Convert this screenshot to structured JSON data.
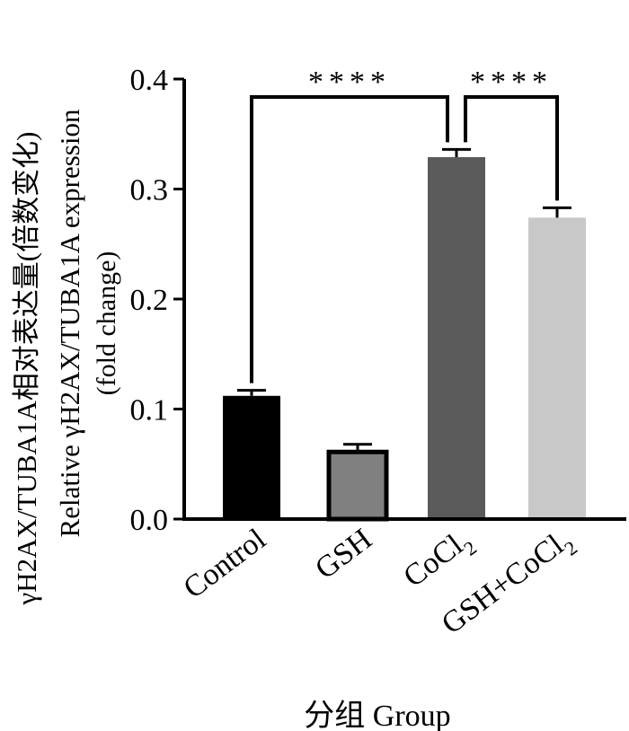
{
  "chart_data": {
    "type": "bar",
    "categories": [
      {
        "main": "Control",
        "sub": ""
      },
      {
        "main": "GSH",
        "sub": ""
      },
      {
        "main": "CoCl",
        "sub": "2"
      },
      {
        "main": "GSH+CoCl",
        "sub": "2"
      }
    ],
    "values": [
      0.112,
      0.061,
      0.329,
      0.274
    ],
    "errors": [
      0.005,
      0.007,
      0.007,
      0.009
    ],
    "colors": [
      "#000000",
      "#808080",
      "#5a5a5a",
      "#c8c8c8"
    ],
    "bordered": [
      false,
      true,
      false,
      false
    ],
    "ylim": [
      0,
      0.4
    ],
    "yticks": [
      "0.0",
      "0.1",
      "0.2",
      "0.3",
      "0.4"
    ],
    "ylabel_lines": [
      "γH2AX/TUBA1A相对表达量(倍数变化)",
      "Relative γH2AX/TUBA1A expression",
      "(fold change)"
    ],
    "xlabel": "分组 Group",
    "significance": [
      {
        "from": 0,
        "to": 2,
        "label": "****"
      },
      {
        "from": 2,
        "to": 3,
        "label": "****"
      }
    ]
  }
}
